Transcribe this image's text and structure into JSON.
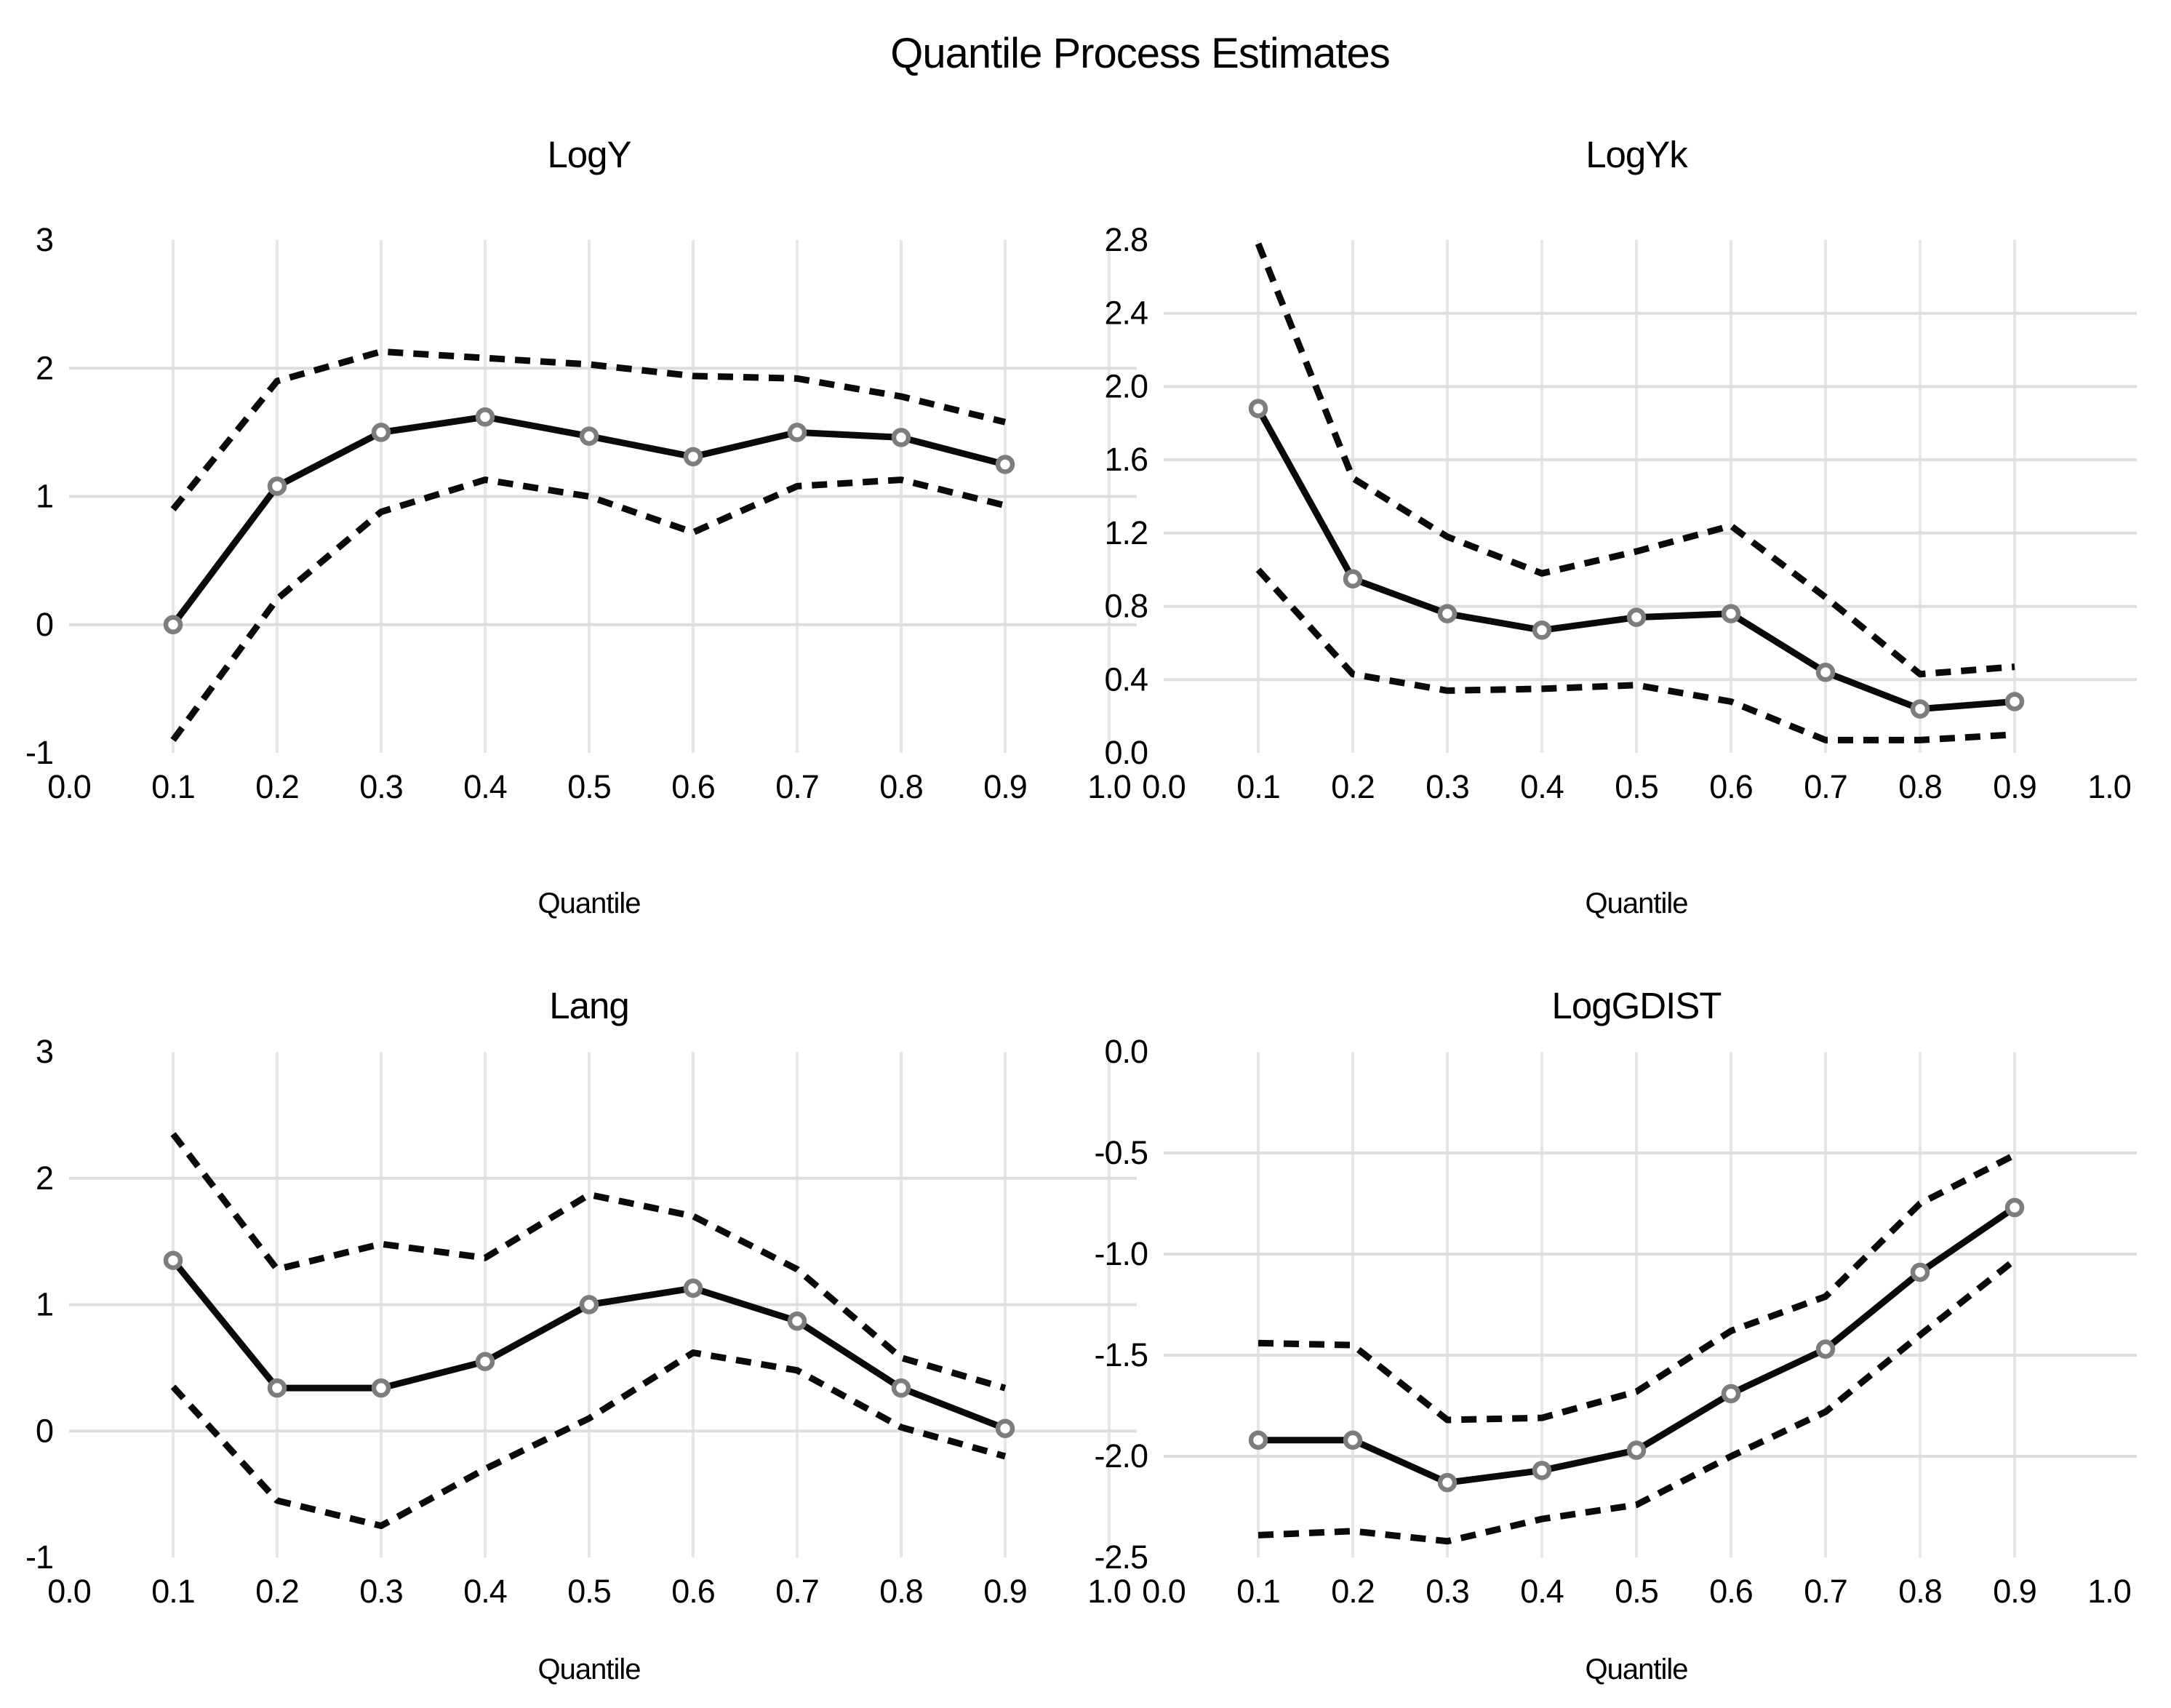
{
  "page_title": "Quantile Process Estimates",
  "axis": {
    "x_label": "Quantile",
    "x_tick_labels": [
      "0.0",
      "0.1",
      "0.2",
      "0.3",
      "0.4",
      "0.5",
      "0.6",
      "0.7",
      "0.8",
      "0.9",
      "1.0"
    ],
    "x_tick_values": [
      0,
      0.1,
      0.2,
      0.3,
      0.4,
      0.5,
      0.6,
      0.7,
      0.8,
      0.9,
      1.0
    ]
  },
  "colors": {
    "line": "#0a0a0a",
    "marker_ring": "#7d7d7d",
    "marker_fill": "#ffffff",
    "grid_horizontal": "#dedede",
    "grid_vertical": "#e6e6e6",
    "text": "#000000",
    "background": "#ffffff"
  },
  "chart_data": [
    {
      "id": "logy",
      "type": "line",
      "title": "LogY",
      "xlabel": "Quantile",
      "legend": "none",
      "grid": "on",
      "xlim": [
        0,
        1
      ],
      "ylim": [
        -1,
        3
      ],
      "x": [
        0.1,
        0.2,
        0.3,
        0.4,
        0.5,
        0.6,
        0.7,
        0.8,
        0.9
      ],
      "y_ticks": [
        {
          "value": 3,
          "label": "3"
        },
        {
          "value": 2,
          "label": "2"
        },
        {
          "value": 1,
          "label": "1"
        },
        {
          "value": 0,
          "label": "0"
        },
        {
          "value": -1,
          "label": "-1"
        }
      ],
      "grid_y_values": [
        2,
        1,
        0
      ],
      "grid_x_values": [
        0.1,
        0.2,
        0.3,
        0.4,
        0.5,
        0.6,
        0.7,
        0.8,
        0.9,
        1.0
      ],
      "series": [
        {
          "name": "estimate",
          "style": "solid",
          "marker": true,
          "values": [
            0.0,
            1.08,
            1.5,
            1.62,
            1.47,
            1.31,
            1.5,
            1.46,
            1.25
          ]
        },
        {
          "name": "upper-ci",
          "style": "dashed",
          "marker": false,
          "values": [
            0.9,
            1.9,
            2.13,
            2.08,
            2.03,
            1.94,
            1.92,
            1.78,
            1.58
          ]
        },
        {
          "name": "lower-ci",
          "style": "dashed",
          "marker": false,
          "values": [
            -0.9,
            0.2,
            0.88,
            1.13,
            1.0,
            0.72,
            1.08,
            1.13,
            0.93
          ]
        }
      ]
    },
    {
      "id": "logyk",
      "type": "line",
      "title": "LogYk",
      "xlabel": "Quantile",
      "legend": "none",
      "grid": "on",
      "xlim": [
        0,
        1
      ],
      "ylim": [
        0,
        2.8
      ],
      "x": [
        0.1,
        0.2,
        0.3,
        0.4,
        0.5,
        0.6,
        0.7,
        0.8,
        0.9
      ],
      "y_ticks": [
        {
          "value": 2.8,
          "label": "2.8"
        },
        {
          "value": 2.4,
          "label": "2.4"
        },
        {
          "value": 2.0,
          "label": "2.0"
        },
        {
          "value": 1.6,
          "label": "1.6"
        },
        {
          "value": 1.2,
          "label": "1.2"
        },
        {
          "value": 0.8,
          "label": "0.8"
        },
        {
          "value": 0.4,
          "label": "0.4"
        },
        {
          "value": 0.0,
          "label": "0.0"
        }
      ],
      "grid_y_values": [
        2.4,
        2.0,
        1.6,
        1.2,
        0.8,
        0.4
      ],
      "grid_x_values": [
        0.1,
        0.2,
        0.3,
        0.4,
        0.5,
        0.6,
        0.7,
        0.8,
        0.9
      ],
      "series": [
        {
          "name": "estimate",
          "style": "solid",
          "marker": true,
          "values": [
            1.88,
            0.95,
            0.76,
            0.67,
            0.74,
            0.76,
            0.44,
            0.24,
            0.28
          ]
        },
        {
          "name": "upper-ci",
          "style": "dashed",
          "marker": false,
          "values": [
            2.78,
            1.5,
            1.18,
            0.98,
            1.1,
            1.24,
            0.85,
            0.43,
            0.47
          ]
        },
        {
          "name": "lower-ci",
          "style": "dashed",
          "marker": false,
          "values": [
            1.0,
            0.43,
            0.34,
            0.35,
            0.37,
            0.28,
            0.07,
            0.07,
            0.1
          ]
        }
      ]
    },
    {
      "id": "lang",
      "type": "line",
      "title": "Lang",
      "xlabel": "Quantile",
      "legend": "none",
      "grid": "on",
      "xlim": [
        0,
        1
      ],
      "ylim": [
        -1,
        3
      ],
      "x": [
        0.1,
        0.2,
        0.3,
        0.4,
        0.5,
        0.6,
        0.7,
        0.8,
        0.9
      ],
      "y_ticks": [
        {
          "value": 3,
          "label": "3"
        },
        {
          "value": 2,
          "label": "2"
        },
        {
          "value": 1,
          "label": "1"
        },
        {
          "value": 0,
          "label": "0"
        },
        {
          "value": -1,
          "label": "-1"
        }
      ],
      "grid_y_values": [
        2,
        1,
        0
      ],
      "grid_x_values": [
        0.1,
        0.2,
        0.3,
        0.4,
        0.5,
        0.6,
        0.7,
        0.8,
        0.9,
        1.0
      ],
      "series": [
        {
          "name": "estimate",
          "style": "solid",
          "marker": true,
          "values": [
            1.35,
            0.34,
            0.34,
            0.55,
            1.0,
            1.13,
            0.87,
            0.34,
            0.02
          ]
        },
        {
          "name": "upper-ci",
          "style": "dashed",
          "marker": false,
          "values": [
            2.35,
            1.28,
            1.48,
            1.37,
            1.87,
            1.7,
            1.28,
            0.58,
            0.34
          ]
        },
        {
          "name": "lower-ci",
          "style": "dashed",
          "marker": false,
          "values": [
            0.35,
            -0.55,
            -0.75,
            -0.3,
            0.1,
            0.62,
            0.48,
            0.03,
            -0.2
          ]
        }
      ]
    },
    {
      "id": "loggdist",
      "type": "line",
      "title": "LogGDIST",
      "xlabel": "Quantile",
      "legend": "none",
      "grid": "on",
      "xlim": [
        0,
        1
      ],
      "ylim": [
        -2.5,
        0
      ],
      "x": [
        0.1,
        0.2,
        0.3,
        0.4,
        0.5,
        0.6,
        0.7,
        0.8,
        0.9
      ],
      "y_ticks": [
        {
          "value": 0.0,
          "label": "0.0"
        },
        {
          "value": -0.5,
          "label": "-0.5"
        },
        {
          "value": -1.0,
          "label": "-1.0"
        },
        {
          "value": -1.5,
          "label": "-1.5"
        },
        {
          "value": -2.0,
          "label": "-2.0"
        },
        {
          "value": -2.5,
          "label": "-2.5"
        }
      ],
      "grid_y_values": [
        -0.5,
        -1.0,
        -1.5,
        -2.0
      ],
      "grid_x_values": [
        0.1,
        0.2,
        0.3,
        0.4,
        0.5,
        0.6,
        0.7,
        0.8,
        0.9
      ],
      "series": [
        {
          "name": "estimate",
          "style": "solid",
          "marker": true,
          "values": [
            -1.92,
            -1.92,
            -2.13,
            -2.07,
            -1.97,
            -1.69,
            -1.47,
            -1.09,
            -0.77
          ]
        },
        {
          "name": "upper-ci",
          "style": "dashed",
          "marker": false,
          "values": [
            -1.44,
            -1.45,
            -1.82,
            -1.81,
            -1.68,
            -1.38,
            -1.21,
            -0.75,
            -0.51
          ]
        },
        {
          "name": "lower-ci",
          "style": "dashed",
          "marker": false,
          "values": [
            -2.39,
            -2.37,
            -2.42,
            -2.31,
            -2.24,
            -2.0,
            -1.78,
            -1.4,
            -1.03
          ]
        }
      ]
    }
  ]
}
